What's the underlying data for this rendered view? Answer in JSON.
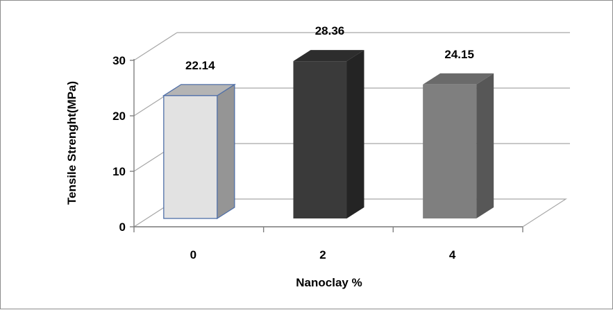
{
  "chart_data": {
    "type": "bar",
    "categories": [
      "0",
      "2",
      "4"
    ],
    "values": [
      22.14,
      28.36,
      24.15
    ],
    "data_labels": [
      "22.14",
      "28.36",
      "24.15"
    ],
    "title": "",
    "xlabel": "Nanoclay %",
    "ylabel": "Tensile Strenght(MPa)",
    "ylim": [
      0,
      30
    ],
    "yticks": [
      "0",
      "10",
      "20",
      "30"
    ],
    "grid": true,
    "legend": "none",
    "style": "3d-column",
    "bar_colors": [
      {
        "front": "#e2e2e2",
        "side": "#959595",
        "top": "#b4b4b4",
        "outline": "#4f6fa8"
      },
      {
        "front": "#3a3a3a",
        "side": "#242424",
        "top": "#2d2d2d",
        "outline": "none"
      },
      {
        "front": "#7f7f7f",
        "side": "#575757",
        "top": "#6a6a6a",
        "outline": "none"
      }
    ],
    "grid_color": "#a6a6a6",
    "axis_color": "#7f7f7f"
  }
}
